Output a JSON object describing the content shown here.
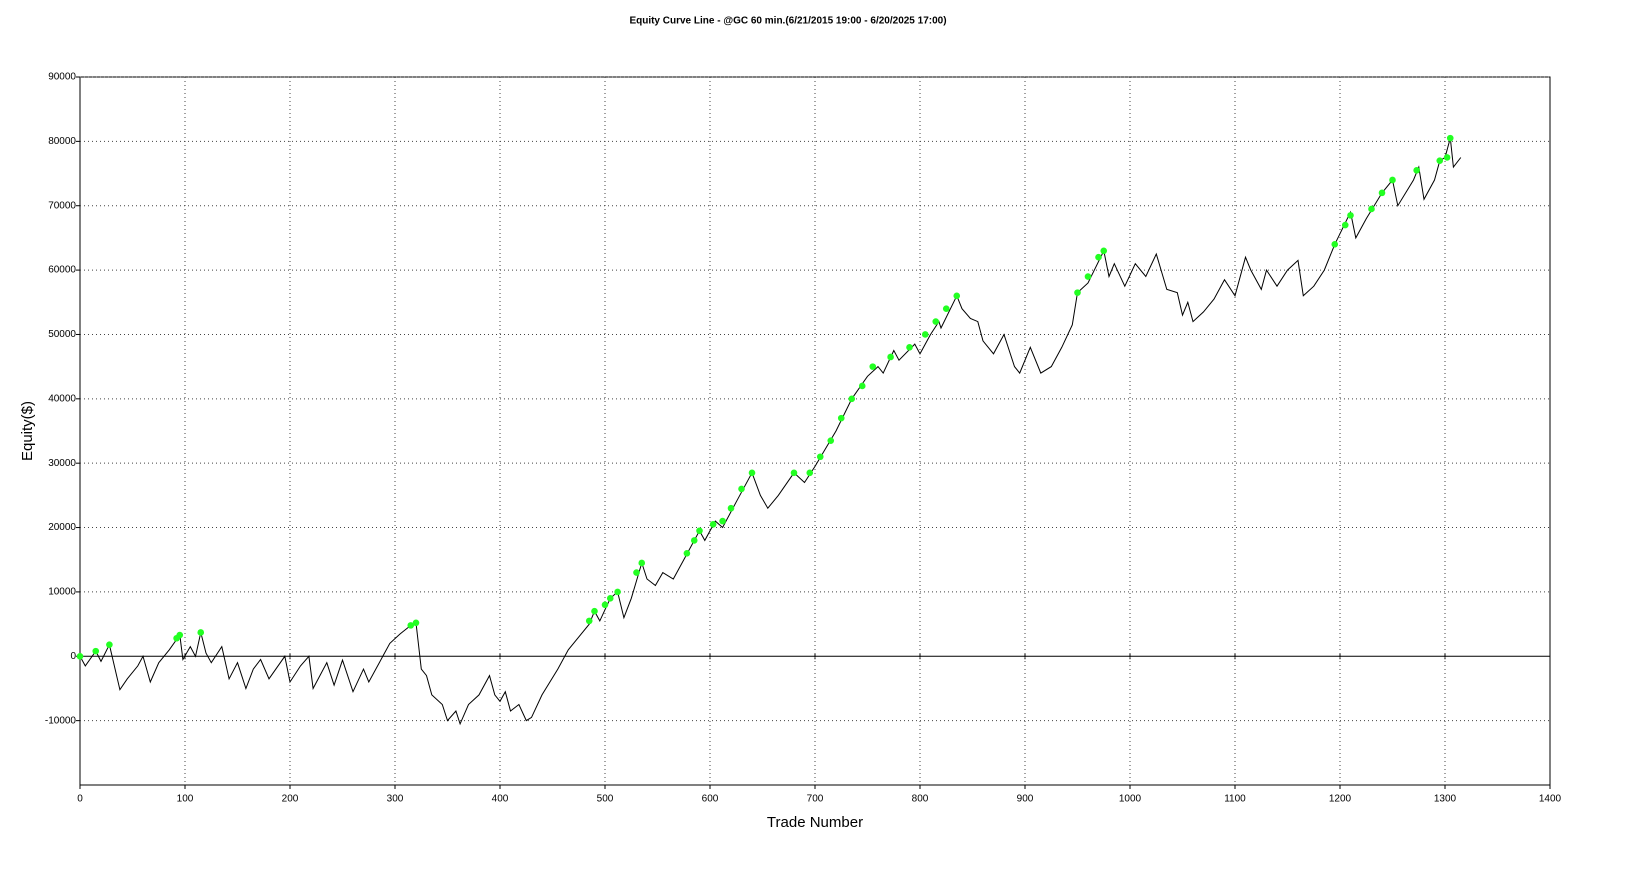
{
  "chart_data": {
    "type": "line",
    "title": "Equity Curve Line - @GC 60 min.(6/21/2015 19:00 - 6/20/2025 17:00)",
    "xlabel": "Trade Number",
    "ylabel": "Equity($)",
    "xlim": [
      0,
      1400
    ],
    "xticks": [
      0,
      100,
      200,
      300,
      400,
      500,
      600,
      700,
      800,
      900,
      1000,
      1100,
      1200,
      1300,
      1400
    ],
    "ylim": [
      -20000,
      90000
    ],
    "yticks": [
      -10000,
      0,
      10000,
      20000,
      30000,
      40000,
      50000,
      60000,
      70000,
      80000,
      90000
    ],
    "grid": true,
    "series": [
      {
        "style": "line",
        "color": "#000000",
        "x": [
          0,
          5,
          15,
          20,
          28,
          38,
          45,
          55,
          60,
          67,
          75,
          85,
          95,
          98,
          105,
          110,
          115,
          120,
          125,
          135,
          142,
          150,
          158,
          165,
          172,
          180,
          195,
          200,
          210,
          218,
          222,
          235,
          242,
          250,
          260,
          270,
          275,
          285,
          295,
          305,
          315,
          320,
          325,
          330,
          335,
          345,
          350,
          358,
          362,
          370,
          380,
          390,
          395,
          400,
          405,
          410,
          418,
          425,
          430,
          440,
          455,
          465,
          485,
          490,
          495,
          505,
          512,
          518,
          525,
          535,
          540,
          548,
          555,
          565,
          575,
          590,
          595,
          605,
          612,
          625,
          640,
          648,
          655,
          665,
          680,
          690,
          700,
          720,
          735,
          750,
          760,
          765,
          775,
          780,
          795,
          800,
          810,
          818,
          820,
          835,
          840,
          848,
          855,
          860,
          870,
          880,
          890,
          895,
          905,
          915,
          925,
          935,
          945,
          950,
          960,
          975,
          980,
          985,
          995,
          1005,
          1015,
          1025,
          1035,
          1045,
          1050,
          1055,
          1060,
          1070,
          1080,
          1090,
          1100,
          1110,
          1115,
          1125,
          1130,
          1140,
          1150,
          1160,
          1165,
          1175,
          1185,
          1195,
          1210,
          1215,
          1225,
          1240,
          1250,
          1255,
          1270,
          1275,
          1280,
          1290,
          1295,
          1300,
          1305,
          1308,
          1315
        ],
        "values": [
          0,
          -1500,
          800,
          -800,
          1800,
          -5200,
          -3500,
          -1500,
          0,
          -4000,
          -1000,
          1000,
          3300,
          -500,
          1500,
          0,
          3700,
          500,
          -1000,
          1500,
          -3500,
          -1000,
          -5000,
          -2000,
          -500,
          -3500,
          0,
          -4000,
          -1500,
          0,
          -5000,
          -1000,
          -4500,
          -600,
          -5500,
          -2000,
          -4000,
          -1000,
          2000,
          3500,
          4800,
          5200,
          -2000,
          -3000,
          -6000,
          -7500,
          -10000,
          -8500,
          -10500,
          -7500,
          -6000,
          -3000,
          -6000,
          -7000,
          -5500,
          -8500,
          -7500,
          -10000,
          -9500,
          -6000,
          -2000,
          1000,
          5000,
          7000,
          5500,
          9000,
          10000,
          6000,
          9000,
          14500,
          12000,
          11000,
          13000,
          12000,
          15000,
          19500,
          18000,
          21000,
          20000,
          24000,
          28500,
          25000,
          23000,
          25000,
          28500,
          27000,
          29500,
          35000,
          40000,
          43500,
          45000,
          44000,
          47500,
          46000,
          48500,
          47000,
          50000,
          52000,
          51000,
          56000,
          54000,
          52500,
          52000,
          49000,
          47000,
          50000,
          45000,
          44000,
          48000,
          44000,
          45000,
          48000,
          51500,
          56500,
          58000,
          63000,
          59000,
          61000,
          57500,
          61000,
          59000,
          62500,
          57000,
          56500,
          53000,
          55000,
          52000,
          53500,
          55500,
          58500,
          56000,
          62000,
          60000,
          57000,
          60000,
          57500,
          60000,
          61500,
          56000,
          57500,
          60000,
          64000,
          69000,
          65000,
          68000,
          72000,
          74000,
          70000,
          74000,
          76000,
          71000,
          74000,
          77000,
          77500,
          80500,
          76000,
          77500
        ]
      },
      {
        "style": "markers",
        "color": "#22ff22",
        "x": [
          0,
          15,
          28,
          92,
          95,
          115,
          315,
          320,
          485,
          490,
          500,
          505,
          512,
          530,
          535,
          578,
          585,
          590,
          603,
          612,
          620,
          630,
          640,
          680,
          695,
          705,
          715,
          725,
          735,
          745,
          755,
          772,
          790,
          805,
          815,
          825,
          835,
          950,
          960,
          970,
          975,
          1195,
          1205,
          1210,
          1230,
          1240,
          1250,
          1273,
          1295,
          1302,
          1305
        ],
        "values": [
          0,
          800,
          1800,
          2800,
          3300,
          3700,
          4800,
          5200,
          5500,
          7000,
          8000,
          9000,
          10000,
          13000,
          14500,
          16000,
          18000,
          19500,
          20500,
          21000,
          23000,
          26000,
          28500,
          28500,
          28500,
          31000,
          33500,
          37000,
          40000,
          42000,
          45000,
          46500,
          48000,
          50000,
          52000,
          54000,
          56000,
          56500,
          59000,
          62000,
          63000,
          64000,
          67000,
          68500,
          69500,
          72000,
          74000,
          75500,
          77000,
          77500,
          80500
        ]
      }
    ]
  }
}
